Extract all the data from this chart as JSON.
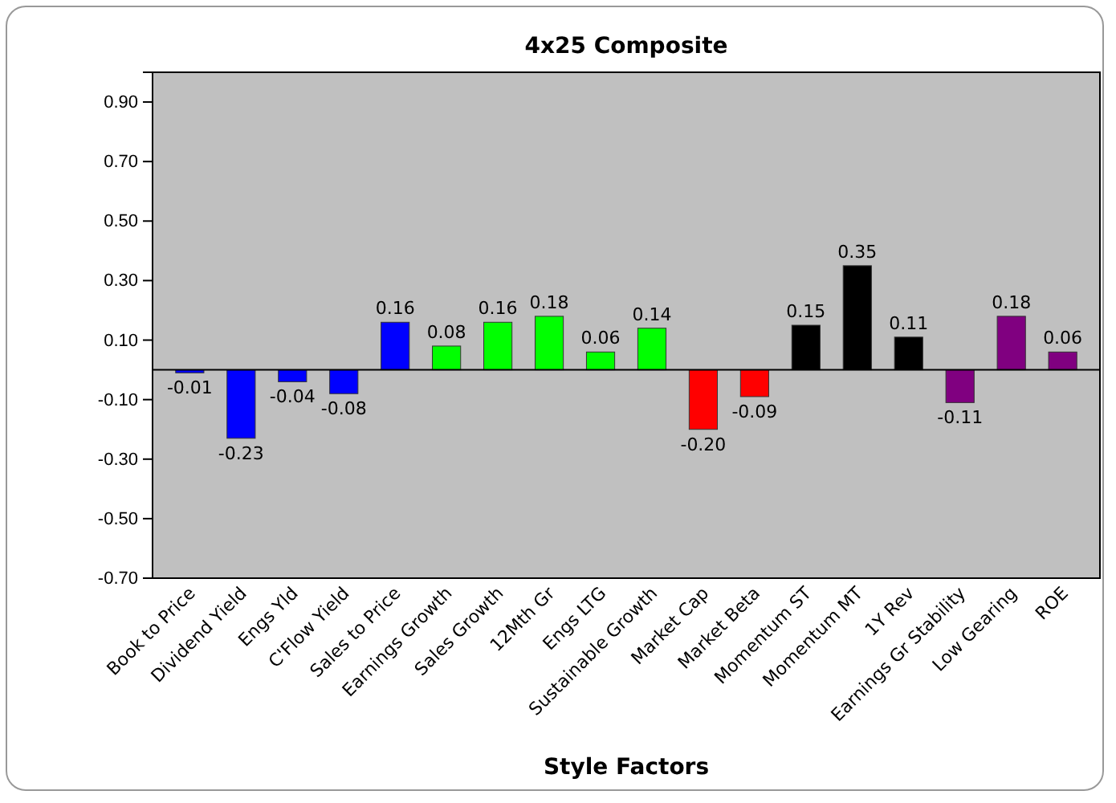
{
  "chart_data": {
    "type": "bar",
    "title": "4x25 Composite",
    "xlabel": "Style Factors",
    "categories": [
      "Book to Price",
      "Dividend Yield",
      "Engs Yld",
      "C'Flow Yield",
      "Sales to Price",
      "Earnings Growth",
      "Sales Growth",
      "12Mth Gr",
      "Engs LTG",
      "Sustainable Growth",
      "Market Cap",
      "Market Beta",
      "Momentum ST",
      "Momentum MT",
      "1Y Rev",
      "Earnings Gr Stability",
      "Low Gearing",
      "ROE"
    ],
    "values": [
      -0.01,
      -0.23,
      -0.04,
      -0.08,
      0.16,
      0.08,
      0.16,
      0.18,
      0.06,
      0.14,
      -0.2,
      -0.09,
      0.15,
      0.35,
      0.11,
      -0.11,
      0.18,
      0.06
    ],
    "colors": [
      "#0000ff",
      "#0000ff",
      "#0000ff",
      "#0000ff",
      "#0000ff",
      "#00ff00",
      "#00ff00",
      "#00ff00",
      "#00ff00",
      "#00ff00",
      "#ff0000",
      "#ff0000",
      "#000000",
      "#000000",
      "#000000",
      "#800080",
      "#800080",
      "#800080"
    ],
    "value_labels": [
      "-0.01",
      "-0.23",
      "-0.04",
      "-0.08",
      "0.16",
      "0.08",
      "0.16",
      "0.18",
      "0.06",
      "0.14",
      "-0.20",
      "-0.09",
      "0.15",
      "0.35",
      "0.11",
      "-0.11",
      "0.18",
      "0.06"
    ],
    "ylim": [
      -0.7,
      1.0
    ],
    "yticks": [
      {
        "value": -0.7,
        "label": "-0.70"
      },
      {
        "value": -0.5,
        "label": "-0.50"
      },
      {
        "value": -0.3,
        "label": "-0.30"
      },
      {
        "value": -0.1,
        "label": "-0.10"
      },
      {
        "value": 0.1,
        "label": "0.10"
      },
      {
        "value": 0.3,
        "label": "0.30"
      },
      {
        "value": 0.5,
        "label": "0.50"
      },
      {
        "value": 0.7,
        "label": "0.70"
      },
      {
        "value": 0.9,
        "label": "0.90"
      }
    ],
    "grid": false
  }
}
